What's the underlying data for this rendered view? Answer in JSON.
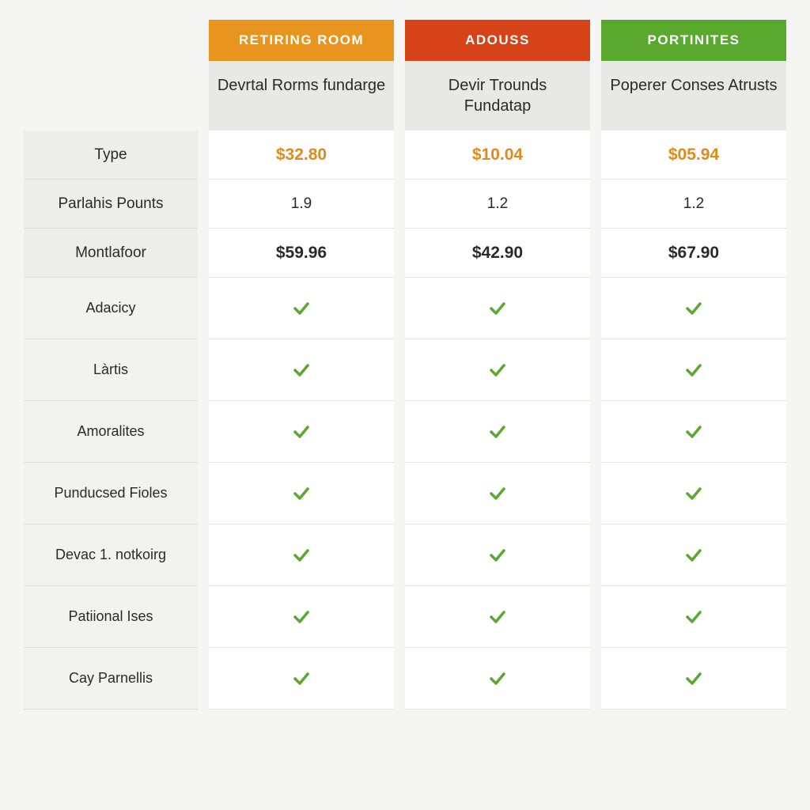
{
  "colors": {
    "header_orange": "#e8951f",
    "header_red": "#d64318",
    "header_green": "#5aa82e",
    "price_text": "#e08a1e",
    "check_color": "#5aa82e",
    "subheader_bg": "#e8e8e6",
    "label_bg": "#ededeb",
    "feature_label_bg": "#f2f2f0",
    "cell_bg": "#ffffff"
  },
  "plans": [
    {
      "header": "RETIRING ROOM",
      "subheader": "Devrtal Rorms fundarge",
      "header_color": "#e8951f"
    },
    {
      "header": "ADOUSS",
      "subheader": "Devir Trounds Fundatap",
      "header_color": "#d64318"
    },
    {
      "header": "PORTINITES",
      "subheader": "Poperer Conses Atrusts",
      "header_color": "#5aa82e"
    }
  ],
  "value_rows": [
    {
      "label": "Type",
      "values": [
        "$32.80",
        "$10.04",
        "$05.94"
      ],
      "style": "price"
    },
    {
      "label": "Parlahis Pounts",
      "values": [
        "1.9",
        "1.2",
        "1.2"
      ],
      "style": "normal"
    },
    {
      "label": "Montlafoor",
      "values": [
        "$59.96",
        "$42.90",
        "$67.90"
      ],
      "style": "bold"
    }
  ],
  "feature_rows": [
    {
      "label": "Adacicy",
      "checks": [
        true,
        true,
        true
      ]
    },
    {
      "label": "Làrtis",
      "checks": [
        true,
        true,
        true
      ]
    },
    {
      "label": "Amoralites",
      "checks": [
        true,
        true,
        true
      ]
    },
    {
      "label": "Punducsed Fioles",
      "checks": [
        true,
        true,
        true
      ]
    },
    {
      "label": "Devac 1. notkoirg",
      "checks": [
        true,
        true,
        true
      ]
    },
    {
      "label": "Patiional Ises",
      "checks": [
        true,
        true,
        true
      ]
    },
    {
      "label": "Cay Parnellis",
      "checks": [
        true,
        true,
        true
      ]
    }
  ]
}
